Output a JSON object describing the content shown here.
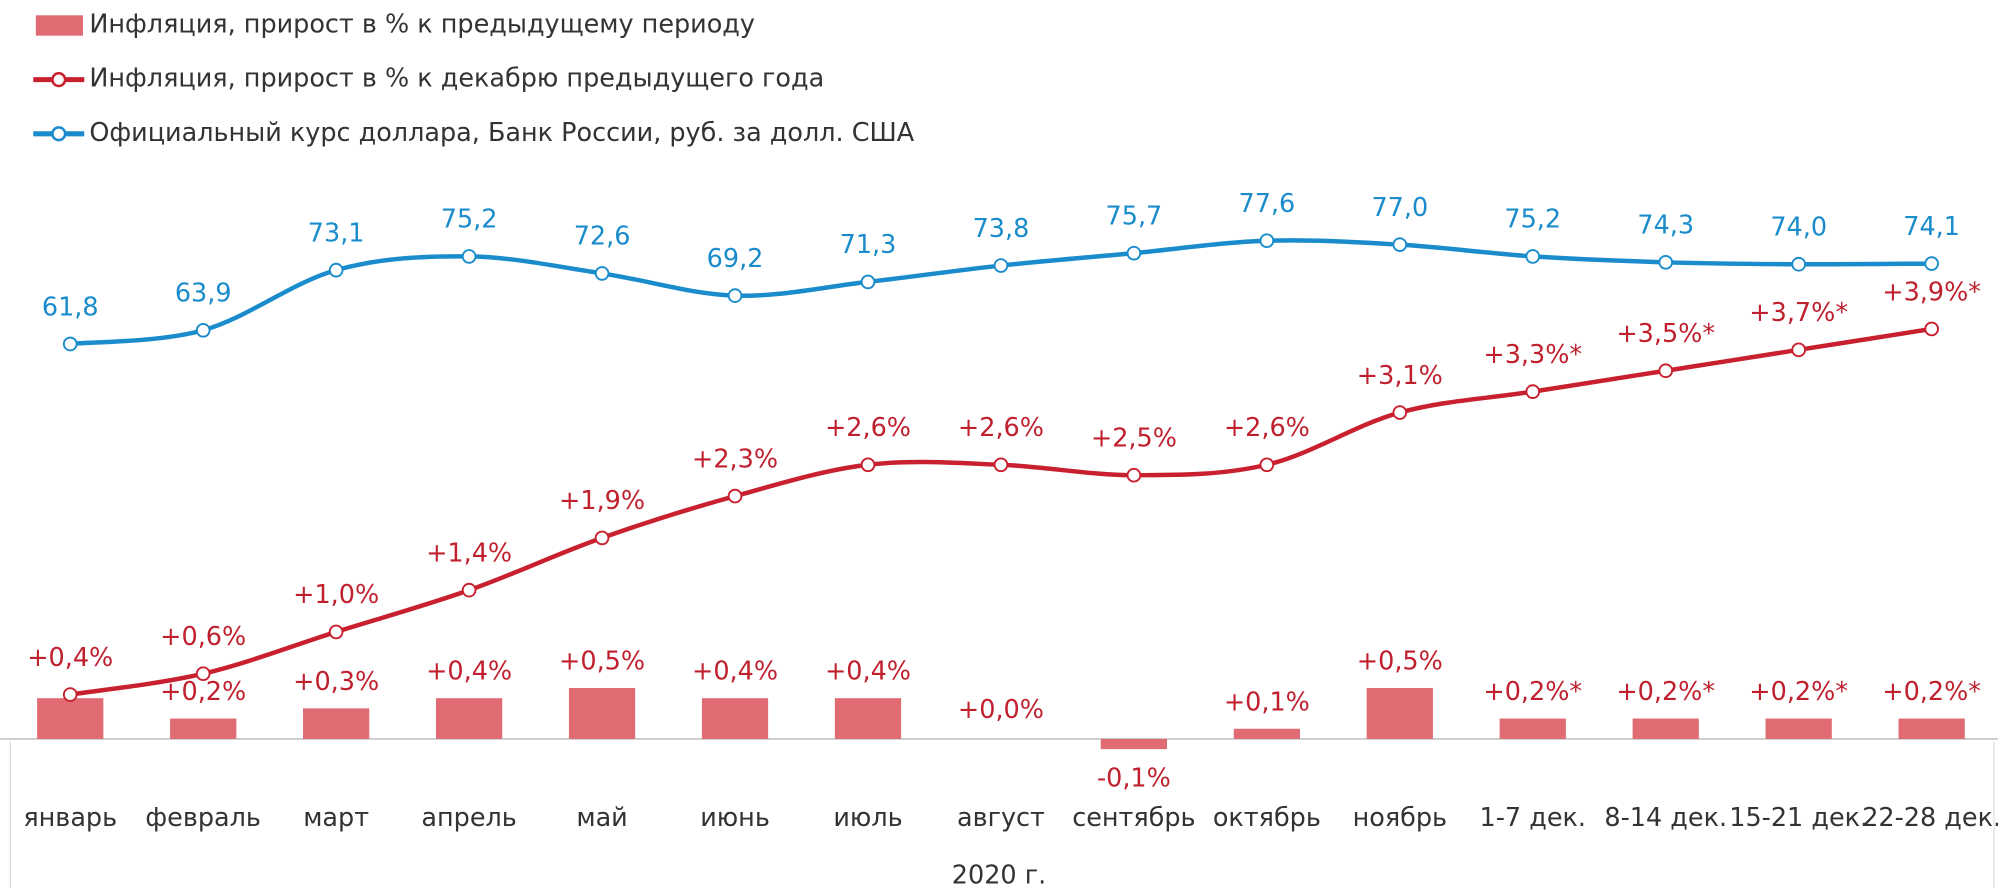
{
  "chart_data": {
    "type": "bar-line",
    "x_label": "2020 г.",
    "categories": [
      "январь",
      "февраль",
      "март",
      "апрель",
      "май",
      "июнь",
      "июль",
      "август",
      "сентябрь",
      "октябрь",
      "ноябрь",
      "1-7 дек.",
      "8-14 дек.",
      "15-21 дек.",
      "22-28 дек."
    ],
    "series": [
      {
        "name": "Инфляция, прирост в % к предыдущему периоду",
        "type": "bar",
        "color": "#e06b73",
        "values": [
          0.4,
          0.2,
          0.3,
          0.4,
          0.5,
          0.4,
          0.4,
          0.0,
          -0.1,
          0.1,
          0.5,
          0.2,
          0.2,
          0.2,
          0.2
        ],
        "value_labels": [
          null,
          "+0,2%",
          "+0,3%",
          "+0,4%",
          "+0,5%",
          "+0,4%",
          "+0,4%",
          "+0,0%",
          "-0,1%",
          "+0,1%",
          "+0,5%",
          "+0,2%*",
          "+0,2%*",
          "+0,2%*",
          "+0,2%*"
        ]
      },
      {
        "name": "Инфляция, прирост в % к декабрю предыдущего года",
        "type": "line",
        "color": "#c8202f",
        "values": [
          0.4,
          0.6,
          1.0,
          1.4,
          1.9,
          2.3,
          2.6,
          2.6,
          2.5,
          2.6,
          3.1,
          3.3,
          3.5,
          3.7,
          3.9
        ],
        "value_labels": [
          "+0,4%",
          "+0,6%",
          "+1,0%",
          "+1,4%",
          "+1,9%",
          "+2,3%",
          "+2,6%",
          "+2,6%",
          "+2,5%",
          "+2,6%",
          "+3,1%",
          "+3,3%*",
          "+3,5%*",
          "+3,7%*",
          "+3,9%*"
        ]
      },
      {
        "name": "Официальный курс доллара, Банк России, руб. за долл. США",
        "type": "line",
        "color": "#1a8ccc",
        "values": [
          61.8,
          63.9,
          73.1,
          75.2,
          72.6,
          69.2,
          71.3,
          73.8,
          75.7,
          77.6,
          77.0,
          75.2,
          74.3,
          74.0,
          74.1
        ],
        "value_labels": [
          "61,8",
          "63,9",
          "73,1",
          "75,2",
          "72,6",
          "69,2",
          "71,3",
          "73,8",
          "75,7",
          "77,6",
          "77,0",
          "75,2",
          "74,3",
          "74,0",
          "74,1"
        ]
      }
    ]
  }
}
